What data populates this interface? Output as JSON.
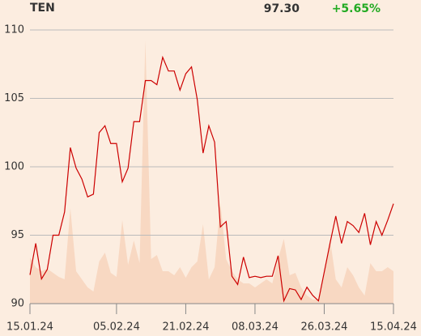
{
  "chart_data": {
    "type": "line",
    "title": "TEN",
    "price": "97.30",
    "change": "+5.65%",
    "change_color": "#22aa22",
    "x": [
      0,
      1,
      2,
      3,
      4,
      5,
      6,
      7,
      8,
      9,
      10,
      11,
      12,
      13,
      14,
      15,
      16,
      17,
      18,
      19,
      20,
      21,
      22,
      23,
      24,
      25,
      26,
      27,
      28,
      29,
      30,
      31,
      32,
      33,
      34,
      35,
      36,
      37,
      38,
      39,
      40,
      41,
      42,
      43,
      44,
      45,
      46,
      47,
      48,
      49,
      50,
      51,
      52,
      53,
      54,
      55,
      56,
      57,
      58,
      59,
      60,
      61,
      62,
      63
    ],
    "series": [
      {
        "color": "#cc0000",
        "values": [
          92.1,
          94.4,
          91.8,
          92.5,
          95.0,
          95.0,
          96.7,
          101.4,
          99.9,
          99.1,
          97.8,
          98.0,
          102.5,
          103.0,
          101.7,
          101.7,
          98.9,
          99.9,
          103.3,
          103.3,
          106.3,
          106.3,
          106.0,
          108.0,
          107.0,
          107.0,
          105.6,
          106.8,
          107.3,
          104.9,
          101.0,
          103.0,
          101.8,
          95.6,
          96.0,
          92.0,
          91.4,
          93.4,
          91.9,
          92.0,
          91.9,
          92.0,
          92.0,
          93.5,
          90.2,
          91.1,
          91.0,
          90.3,
          91.2,
          90.6,
          90.2,
          92.3,
          94.4,
          96.4,
          94.4,
          96.0,
          95.7,
          95.2,
          96.6,
          94.3,
          96.0,
          95.0,
          96.1,
          97.3
        ]
      }
    ],
    "volume": [
      57,
      45,
      40,
      43,
      38,
      33,
      30,
      118,
      40,
      30,
      20,
      15,
      52,
      63,
      38,
      33,
      103,
      48,
      78,
      50,
      325,
      55,
      60,
      40,
      40,
      35,
      45,
      32,
      45,
      52,
      98,
      30,
      45,
      125,
      55,
      40,
      30,
      25,
      25,
      20,
      25,
      30,
      25,
      55,
      80,
      35,
      38,
      20,
      10,
      5,
      5,
      35,
      80,
      30,
      20,
      45,
      35,
      20,
      10,
      50,
      40,
      40,
      45,
      40
    ],
    "volume_color": "#f8d8c2",
    "volume_lim": [
      0,
      338
    ],
    "xlim": [
      0,
      63
    ],
    "ylim": [
      90,
      110
    ],
    "yticks": [
      90,
      95,
      100,
      105,
      110
    ],
    "grid": true,
    "xticks": [
      {
        "value": 0,
        "label": "15.01.24"
      },
      {
        "value": 15,
        "label": "05.02.24"
      },
      {
        "value": 27,
        "label": "21.02.24"
      },
      {
        "value": 39,
        "label": "08.03.24"
      },
      {
        "value": 51,
        "label": "26.03.24"
      },
      {
        "value": 63,
        "label": "15.04.24"
      }
    ]
  }
}
